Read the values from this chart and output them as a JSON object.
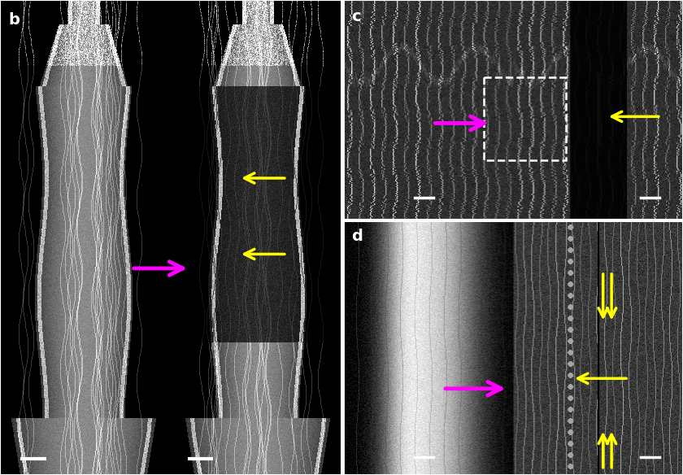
{
  "layout": {
    "fig_width": 8.4,
    "fig_height": 5.84,
    "dpi": 100,
    "bg_color": "#000000",
    "border_color": "#ffffff",
    "border_lw": 1.5
  },
  "panels": {
    "b": {
      "label": "b"
    },
    "c": {
      "label": "c"
    },
    "d": {
      "label": "d"
    }
  },
  "label_color": "#ffffff",
  "label_fontsize": 14,
  "arrow_magenta": "#FF00FF",
  "arrow_yellow": "#FFFF00",
  "scale_bar_color": "#ffffff"
}
